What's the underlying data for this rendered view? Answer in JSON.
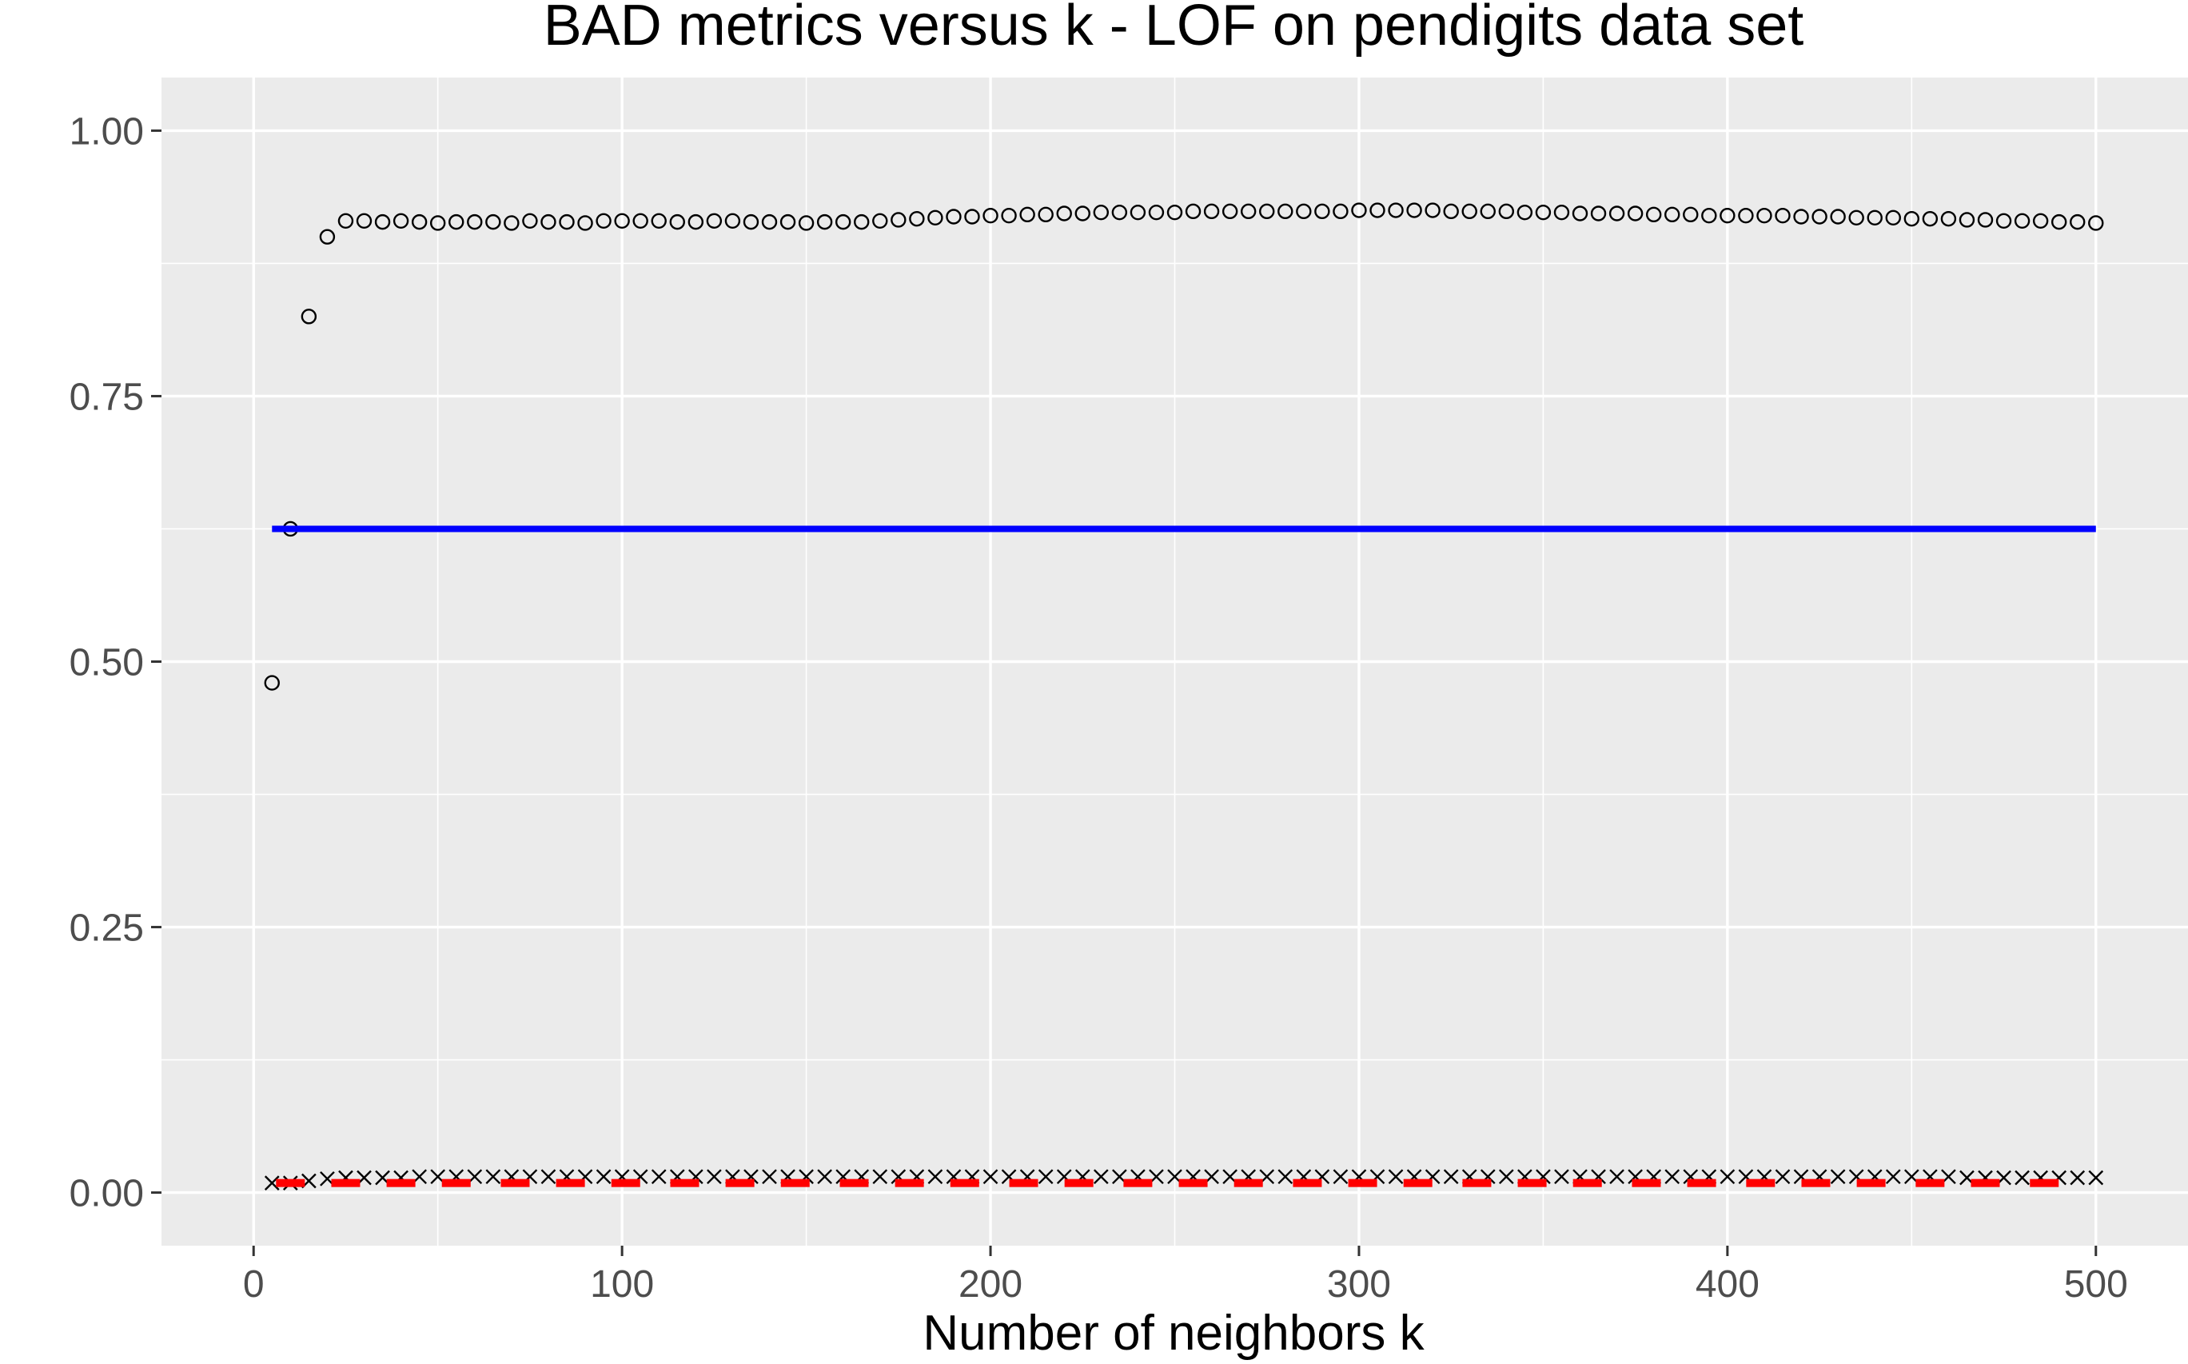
{
  "chart_data": {
    "type": "scatter",
    "title": "BAD metrics versus k - LOF on pendigits data set",
    "xlabel": "Number of neighbors k",
    "ylabel": "",
    "xlim": [
      -25,
      525
    ],
    "ylim": [
      -0.05,
      1.05
    ],
    "x_ticks": [
      0,
      100,
      200,
      300,
      400,
      500
    ],
    "x_tick_labels": [
      "0",
      "100",
      "200",
      "300",
      "400",
      "500"
    ],
    "y_ticks": [
      0,
      0.25,
      0.5,
      0.75,
      1
    ],
    "y_tick_labels": [
      "0.00",
      "0.25",
      "0.50",
      "0.75",
      "1.00"
    ],
    "grid": true,
    "legend": "none",
    "series": [
      {
        "marker": "circle",
        "color": "#000000",
        "x": [
          5,
          10,
          15,
          20,
          25,
          30,
          35,
          40,
          45,
          50,
          55,
          60,
          65,
          70,
          75,
          80,
          85,
          90,
          95,
          100,
          105,
          110,
          115,
          120,
          125,
          130,
          135,
          140,
          145,
          150,
          155,
          160,
          165,
          170,
          175,
          180,
          185,
          190,
          195,
          200,
          205,
          210,
          215,
          220,
          225,
          230,
          235,
          240,
          245,
          250,
          255,
          260,
          265,
          270,
          275,
          280,
          285,
          290,
          295,
          300,
          305,
          310,
          315,
          320,
          325,
          330,
          335,
          340,
          345,
          350,
          355,
          360,
          365,
          370,
          375,
          380,
          385,
          390,
          395,
          400,
          405,
          410,
          415,
          420,
          425,
          430,
          435,
          440,
          445,
          450,
          455,
          460,
          465,
          470,
          475,
          480,
          485,
          490,
          495,
          500
        ],
        "y": [
          0.48,
          0.625,
          0.825,
          0.9,
          0.915,
          0.915,
          0.914,
          0.915,
          0.914,
          0.913,
          0.914,
          0.914,
          0.914,
          0.913,
          0.915,
          0.914,
          0.914,
          0.913,
          0.915,
          0.915,
          0.915,
          0.915,
          0.914,
          0.914,
          0.915,
          0.915,
          0.914,
          0.914,
          0.914,
          0.913,
          0.914,
          0.914,
          0.914,
          0.915,
          0.916,
          0.917,
          0.918,
          0.919,
          0.919,
          0.92,
          0.92,
          0.921,
          0.921,
          0.922,
          0.922,
          0.923,
          0.923,
          0.923,
          0.923,
          0.923,
          0.924,
          0.924,
          0.924,
          0.924,
          0.924,
          0.924,
          0.924,
          0.924,
          0.924,
          0.925,
          0.925,
          0.925,
          0.925,
          0.925,
          0.924,
          0.924,
          0.924,
          0.924,
          0.923,
          0.923,
          0.923,
          0.922,
          0.922,
          0.922,
          0.922,
          0.921,
          0.921,
          0.921,
          0.92,
          0.92,
          0.92,
          0.92,
          0.92,
          0.919,
          0.919,
          0.919,
          0.918,
          0.918,
          0.918,
          0.917,
          0.917,
          0.917,
          0.916,
          0.916,
          0.915,
          0.915,
          0.915,
          0.914,
          0.914,
          0.913
        ]
      },
      {
        "marker": "cross",
        "color": "#000000",
        "x": [
          5,
          10,
          15,
          20,
          25,
          30,
          35,
          40,
          45,
          50,
          55,
          60,
          65,
          70,
          75,
          80,
          85,
          90,
          95,
          100,
          105,
          110,
          115,
          120,
          125,
          130,
          135,
          140,
          145,
          150,
          155,
          160,
          165,
          170,
          175,
          180,
          185,
          190,
          195,
          200,
          205,
          210,
          215,
          220,
          225,
          230,
          235,
          240,
          245,
          250,
          255,
          260,
          265,
          270,
          275,
          280,
          285,
          290,
          295,
          300,
          305,
          310,
          315,
          320,
          325,
          330,
          335,
          340,
          345,
          350,
          355,
          360,
          365,
          370,
          375,
          380,
          385,
          390,
          395,
          400,
          405,
          410,
          415,
          420,
          425,
          430,
          435,
          440,
          445,
          450,
          455,
          460,
          465,
          470,
          475,
          480,
          485,
          490,
          495,
          500
        ],
        "y": [
          0.009,
          0.009,
          0.011,
          0.013,
          0.014,
          0.014,
          0.014,
          0.014,
          0.015,
          0.015,
          0.015,
          0.015,
          0.015,
          0.015,
          0.015,
          0.015,
          0.015,
          0.015,
          0.015,
          0.015,
          0.015,
          0.015,
          0.015,
          0.015,
          0.015,
          0.015,
          0.015,
          0.015,
          0.015,
          0.015,
          0.015,
          0.015,
          0.015,
          0.015,
          0.015,
          0.015,
          0.015,
          0.015,
          0.015,
          0.015,
          0.015,
          0.015,
          0.015,
          0.015,
          0.015,
          0.015,
          0.015,
          0.015,
          0.015,
          0.015,
          0.015,
          0.015,
          0.015,
          0.015,
          0.015,
          0.015,
          0.015,
          0.015,
          0.015,
          0.015,
          0.015,
          0.015,
          0.015,
          0.015,
          0.015,
          0.015,
          0.015,
          0.015,
          0.015,
          0.015,
          0.015,
          0.015,
          0.015,
          0.015,
          0.015,
          0.015,
          0.015,
          0.015,
          0.015,
          0.015,
          0.015,
          0.015,
          0.015,
          0.015,
          0.015,
          0.015,
          0.015,
          0.015,
          0.015,
          0.015,
          0.015,
          0.015,
          0.014,
          0.014,
          0.014,
          0.014,
          0.014,
          0.014,
          0.014,
          0.014
        ]
      },
      {
        "marker": "dash",
        "color": "#ff0000",
        "x": [
          10,
          25,
          40,
          55,
          71,
          86,
          101,
          117,
          132,
          147,
          163,
          178,
          193,
          209,
          224,
          240,
          255,
          270,
          286,
          301,
          316,
          332,
          347,
          362,
          378,
          393,
          409,
          424,
          439,
          455,
          470,
          486
        ],
        "y": [
          0.009,
          0.009,
          0.009,
          0.009,
          0.009,
          0.009,
          0.009,
          0.009,
          0.009,
          0.009,
          0.009,
          0.009,
          0.009,
          0.009,
          0.009,
          0.009,
          0.009,
          0.009,
          0.009,
          0.009,
          0.009,
          0.009,
          0.009,
          0.009,
          0.009,
          0.009,
          0.009,
          0.009,
          0.009,
          0.009,
          0.009,
          0.009
        ]
      },
      {
        "marker": "line",
        "color": "#0000ff",
        "x": [
          5,
          500
        ],
        "y": [
          0.625,
          0.625
        ]
      }
    ]
  }
}
